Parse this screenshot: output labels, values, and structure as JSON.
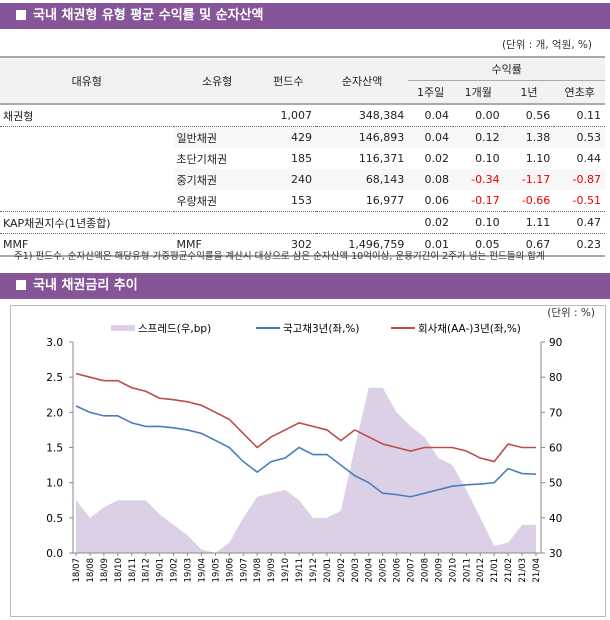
{
  "section1": {
    "title": "국내 채권형 유형 평균 수익률 및 순자산액",
    "unit": "(단위 : 개, 억원, %)",
    "headers": {
      "major": "대유형",
      "minor": "소유형",
      "funds": "펀드수",
      "assets": "순자산액",
      "returns": "수익률",
      "w1": "1주일",
      "m1": "1개월",
      "y1": "1년",
      "ytd": "연초후"
    },
    "rows": [
      {
        "major": "채권형",
        "minor": "",
        "funds": "1,007",
        "assets": "348,384",
        "w1": "0.04",
        "m1": "0.00",
        "y1": "0.56",
        "ytd": "0.11"
      },
      {
        "major": "",
        "minor": "일반채권",
        "funds": "429",
        "assets": "146,893",
        "w1": "0.04",
        "m1": "0.12",
        "y1": "1.38",
        "ytd": "0.53"
      },
      {
        "major": "",
        "minor": "초단기채권",
        "funds": "185",
        "assets": "116,371",
        "w1": "0.02",
        "m1": "0.10",
        "y1": "1.10",
        "ytd": "0.44"
      },
      {
        "major": "",
        "minor": "중기채권",
        "funds": "240",
        "assets": "68,143",
        "w1": "0.08",
        "m1": "-0.34",
        "y1": "-1.17",
        "ytd": "-0.87"
      },
      {
        "major": "",
        "minor": "우량채권",
        "funds": "153",
        "assets": "16,977",
        "w1": "0.06",
        "m1": "-0.17",
        "y1": "-0.66",
        "ytd": "-0.51"
      },
      {
        "major": "KAP채권지수(1년종합)",
        "minor": "",
        "funds": "",
        "assets": "",
        "w1": "0.02",
        "m1": "0.10",
        "y1": "1.11",
        "ytd": "0.47"
      },
      {
        "major": "MMF",
        "minor": "MMF",
        "funds": "302",
        "assets": "1,496,759",
        "w1": "0.01",
        "m1": "0.05",
        "y1": "0.67",
        "ytd": "0.23"
      }
    ],
    "note": "주1) 펀드수, 순자산액은 해당유형 가중평균수익률을 계산시 대상으로 삼은 순자산액 10억이상, 운용기간이 2주가 넘는 펀드들의 합계"
  },
  "section2": {
    "title": "국내 채권금리 추이",
    "unit": "(단위 : %)"
  },
  "chart_data": {
    "type": "line+area",
    "categories": [
      "18/07",
      "18/08",
      "18/09",
      "18/10",
      "18/11",
      "18/12",
      "19/01",
      "19/02",
      "19/03",
      "19/04",
      "19/05",
      "19/06",
      "19/07",
      "19/08",
      "19/09",
      "19/10",
      "19/11",
      "19/12",
      "20/01",
      "20/02",
      "20/03",
      "20/04",
      "20/05",
      "20/06",
      "20/07",
      "20/08",
      "20/09",
      "20/10",
      "20/11",
      "20/12",
      "21/01",
      "21/02",
      "21/03",
      "21/04"
    ],
    "yleft": {
      "ylim": [
        0,
        3
      ],
      "ticks": [
        "0.0",
        "0.5",
        "1.0",
        "1.5",
        "2.0",
        "2.5",
        "3.0"
      ]
    },
    "yright": {
      "ylim": [
        30,
        90
      ],
      "ticks": [
        "30",
        "40",
        "50",
        "60",
        "70",
        "80",
        "90"
      ]
    },
    "series": [
      {
        "name": "스프레드(우,bp)",
        "axis": "right",
        "kind": "area",
        "color": "#dcd0e6",
        "values": [
          45,
          40,
          43,
          45,
          45,
          45,
          41,
          38,
          35,
          31,
          30,
          33,
          40,
          46,
          47,
          48,
          45,
          40,
          40,
          42,
          60,
          77,
          77,
          70,
          66,
          63,
          57,
          55,
          48,
          40,
          32,
          33,
          38,
          38
        ]
      },
      {
        "name": "국고채3년(좌,%)",
        "axis": "left",
        "kind": "line",
        "color": "#4a7ebb",
        "values": [
          2.09,
          2.0,
          1.95,
          1.95,
          1.85,
          1.8,
          1.8,
          1.78,
          1.75,
          1.7,
          1.6,
          1.5,
          1.3,
          1.15,
          1.3,
          1.35,
          1.5,
          1.4,
          1.4,
          1.25,
          1.1,
          1.0,
          0.85,
          0.83,
          0.8,
          0.85,
          0.9,
          0.95,
          0.97,
          0.98,
          1.0,
          1.2,
          1.13,
          1.12
        ]
      },
      {
        "name": "회사채(AA-)3년(좌,%)",
        "axis": "left",
        "kind": "line",
        "color": "#be4b48",
        "values": [
          2.55,
          2.5,
          2.45,
          2.45,
          2.35,
          2.3,
          2.2,
          2.18,
          2.15,
          2.1,
          2.0,
          1.9,
          1.7,
          1.5,
          1.65,
          1.75,
          1.85,
          1.8,
          1.75,
          1.6,
          1.75,
          1.65,
          1.55,
          1.5,
          1.45,
          1.5,
          1.5,
          1.5,
          1.45,
          1.35,
          1.3,
          1.55,
          1.5,
          1.5
        ]
      }
    ]
  }
}
